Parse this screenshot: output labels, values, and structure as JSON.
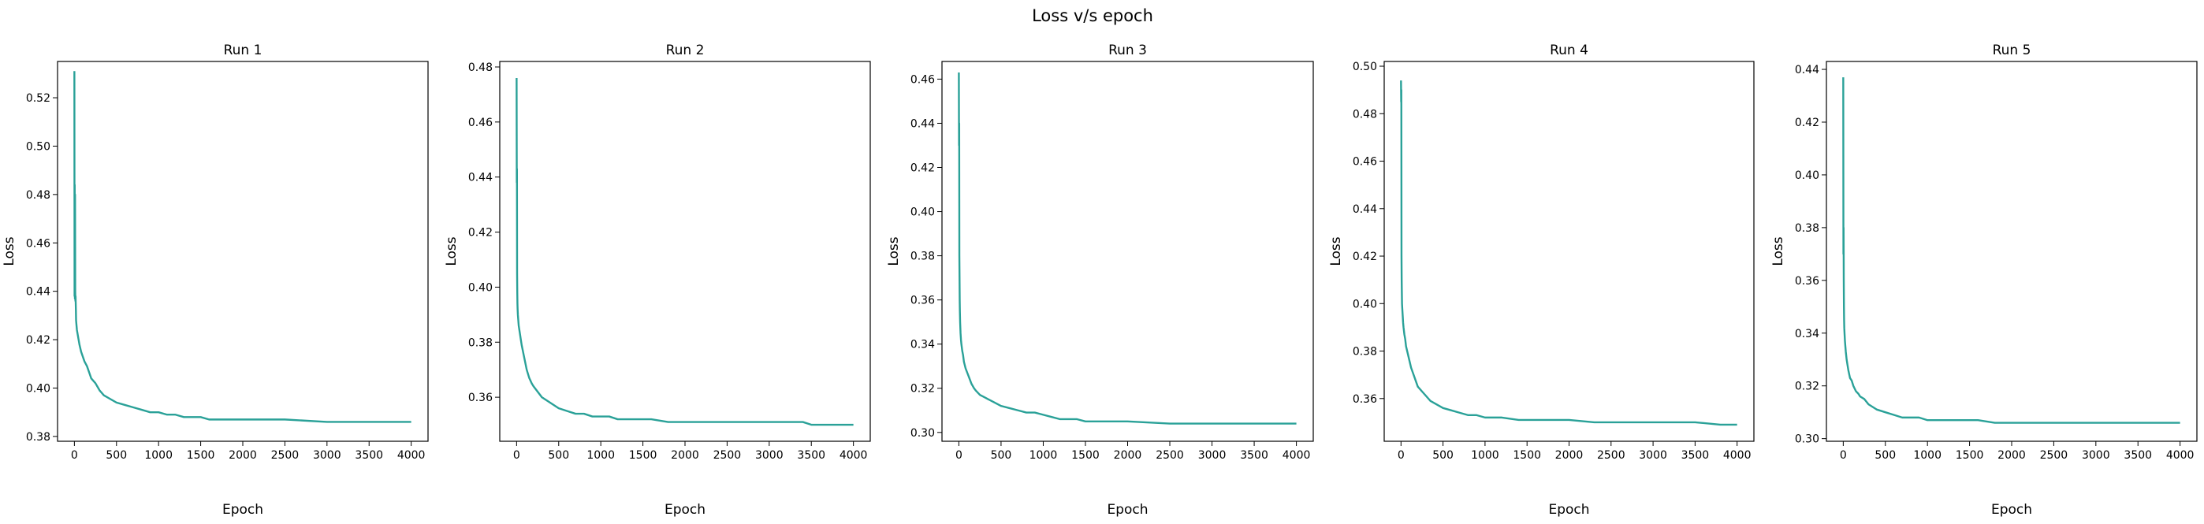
{
  "figure": {
    "suptitle": "Loss v/s epoch"
  },
  "colors": {
    "line": "#2aa198",
    "axes": "#000000",
    "background": "#ffffff"
  },
  "chart_data": [
    {
      "type": "line",
      "title": "Run 1",
      "xlabel": "Epoch",
      "ylabel": "Loss",
      "xlim": [
        -200,
        4200
      ],
      "ylim": [
        0.378,
        0.535
      ],
      "xticks": [
        0,
        500,
        1000,
        1500,
        2000,
        2500,
        3000,
        3500,
        4000
      ],
      "yticks": [
        0.38,
        0.4,
        0.42,
        0.44,
        0.46,
        0.48,
        0.5,
        0.52
      ],
      "ytick_labels": [
        "0.38",
        "0.40",
        "0.42",
        "0.44",
        "0.46",
        "0.48",
        "0.50",
        "0.52"
      ],
      "grid": false,
      "series": [
        {
          "x": [
            0,
            2,
            4,
            6,
            8,
            10,
            12,
            14,
            16,
            18,
            20,
            25,
            30,
            40,
            50,
            60,
            80,
            100,
            120,
            150,
            180,
            200,
            250,
            300,
            350,
            400,
            500,
            600,
            700,
            800,
            900,
            1000,
            1100,
            1200,
            1300,
            1400,
            1500,
            1600,
            1800,
            2000,
            2500,
            3000,
            3500,
            4000
          ],
          "y": [
            0.531,
            0.438,
            0.484,
            0.437,
            0.48,
            0.44,
            0.436,
            0.438,
            0.435,
            0.432,
            0.428,
            0.426,
            0.424,
            0.422,
            0.42,
            0.418,
            0.415,
            0.413,
            0.411,
            0.409,
            0.406,
            0.404,
            0.402,
            0.399,
            0.397,
            0.396,
            0.394,
            0.393,
            0.392,
            0.391,
            0.39,
            0.39,
            0.389,
            0.389,
            0.388,
            0.388,
            0.388,
            0.387,
            0.387,
            0.387,
            0.387,
            0.386,
            0.386,
            0.386
          ]
        }
      ]
    },
    {
      "type": "line",
      "title": "Run 2",
      "xlabel": "Epoch",
      "ylabel": "Loss",
      "xlim": [
        -200,
        4200
      ],
      "ylim": [
        0.344,
        0.482
      ],
      "xticks": [
        0,
        500,
        1000,
        1500,
        2000,
        2500,
        3000,
        3500,
        4000
      ],
      "yticks": [
        0.36,
        0.38,
        0.4,
        0.42,
        0.44,
        0.46,
        0.48
      ],
      "ytick_labels": [
        "0.36",
        "0.38",
        "0.40",
        "0.42",
        "0.44",
        "0.46",
        "0.48"
      ],
      "grid": false,
      "series": [
        {
          "x": [
            0,
            2,
            4,
            6,
            8,
            10,
            12,
            15,
            20,
            25,
            30,
            40,
            50,
            60,
            80,
            100,
            120,
            150,
            180,
            200,
            250,
            300,
            350,
            400,
            500,
            600,
            700,
            800,
            900,
            1000,
            1100,
            1200,
            1400,
            1600,
            1800,
            2000,
            2500,
            3000,
            3400,
            3500,
            4000
          ],
          "y": [
            0.476,
            0.438,
            0.443,
            0.405,
            0.398,
            0.394,
            0.392,
            0.39,
            0.388,
            0.386,
            0.385,
            0.383,
            0.381,
            0.379,
            0.376,
            0.373,
            0.37,
            0.367,
            0.365,
            0.364,
            0.362,
            0.36,
            0.359,
            0.358,
            0.356,
            0.355,
            0.354,
            0.354,
            0.353,
            0.353,
            0.353,
            0.352,
            0.352,
            0.352,
            0.351,
            0.351,
            0.351,
            0.351,
            0.351,
            0.35,
            0.35
          ]
        }
      ]
    },
    {
      "type": "line",
      "title": "Run 3",
      "xlabel": "Epoch",
      "ylabel": "Loss",
      "xlim": [
        -200,
        4200
      ],
      "ylim": [
        0.296,
        0.468
      ],
      "xticks": [
        0,
        500,
        1000,
        1500,
        2000,
        2500,
        3000,
        3500,
        4000
      ],
      "yticks": [
        0.3,
        0.32,
        0.34,
        0.36,
        0.38,
        0.4,
        0.42,
        0.44,
        0.46
      ],
      "ytick_labels": [
        "0.30",
        "0.32",
        "0.34",
        "0.36",
        "0.38",
        "0.40",
        "0.42",
        "0.44",
        "0.46"
      ],
      "grid": false,
      "series": [
        {
          "x": [
            0,
            2,
            4,
            6,
            8,
            10,
            12,
            15,
            20,
            25,
            30,
            40,
            50,
            60,
            80,
            100,
            120,
            150,
            180,
            200,
            250,
            300,
            350,
            400,
            500,
            600,
            700,
            800,
            900,
            1000,
            1100,
            1200,
            1400,
            1500,
            2000,
            2500,
            3000,
            3500,
            4000
          ],
          "y": [
            0.463,
            0.43,
            0.44,
            0.38,
            0.37,
            0.36,
            0.355,
            0.35,
            0.345,
            0.342,
            0.34,
            0.337,
            0.335,
            0.332,
            0.329,
            0.327,
            0.325,
            0.322,
            0.32,
            0.319,
            0.317,
            0.316,
            0.315,
            0.314,
            0.312,
            0.311,
            0.31,
            0.309,
            0.309,
            0.308,
            0.307,
            0.306,
            0.306,
            0.305,
            0.305,
            0.304,
            0.304,
            0.304,
            0.304
          ]
        }
      ]
    },
    {
      "type": "line",
      "title": "Run 4",
      "xlabel": "Epoch",
      "ylabel": "Loss",
      "xlim": [
        -200,
        4200
      ],
      "ylim": [
        0.342,
        0.502
      ],
      "xticks": [
        0,
        500,
        1000,
        1500,
        2000,
        2500,
        3000,
        3500,
        4000
      ],
      "yticks": [
        0.36,
        0.38,
        0.4,
        0.42,
        0.44,
        0.46,
        0.48,
        0.5
      ],
      "ytick_labels": [
        "0.36",
        "0.38",
        "0.40",
        "0.42",
        "0.44",
        "0.46",
        "0.48",
        "0.50"
      ],
      "grid": false,
      "series": [
        {
          "x": [
            0,
            2,
            4,
            6,
            8,
            10,
            12,
            15,
            20,
            25,
            30,
            40,
            50,
            60,
            80,
            100,
            120,
            150,
            180,
            200,
            250,
            300,
            350,
            400,
            500,
            600,
            700,
            800,
            900,
            1000,
            1100,
            1200,
            1400,
            1500,
            1800,
            2000,
            2300,
            2500,
            3000,
            3500,
            3800,
            4000
          ],
          "y": [
            0.494,
            0.485,
            0.49,
            0.42,
            0.41,
            0.405,
            0.4,
            0.398,
            0.395,
            0.392,
            0.39,
            0.387,
            0.385,
            0.382,
            0.379,
            0.376,
            0.373,
            0.37,
            0.367,
            0.365,
            0.363,
            0.361,
            0.359,
            0.358,
            0.356,
            0.355,
            0.354,
            0.353,
            0.353,
            0.352,
            0.352,
            0.352,
            0.351,
            0.351,
            0.351,
            0.351,
            0.35,
            0.35,
            0.35,
            0.35,
            0.349,
            0.349
          ]
        }
      ]
    },
    {
      "type": "line",
      "title": "Run 5",
      "xlabel": "Epoch",
      "ylabel": "Loss",
      "xlim": [
        -200,
        4200
      ],
      "ylim": [
        0.299,
        0.443
      ],
      "xticks": [
        0,
        500,
        1000,
        1500,
        2000,
        2500,
        3000,
        3500,
        4000
      ],
      "yticks": [
        0.3,
        0.32,
        0.34,
        0.36,
        0.38,
        0.4,
        0.42,
        0.44
      ],
      "ytick_labels": [
        "0.30",
        "0.32",
        "0.34",
        "0.36",
        "0.38",
        "0.40",
        "0.42",
        "0.44"
      ],
      "grid": false,
      "series": [
        {
          "x": [
            0,
            2,
            4,
            6,
            8,
            10,
            12,
            15,
            20,
            25,
            30,
            40,
            50,
            60,
            80,
            100,
            120,
            150,
            180,
            200,
            250,
            300,
            350,
            400,
            500,
            600,
            700,
            800,
            900,
            1000,
            1100,
            1200,
            1400,
            1600,
            1800,
            2000,
            2500,
            3000,
            3500,
            4000
          ],
          "y": [
            0.437,
            0.37,
            0.38,
            0.36,
            0.35,
            0.345,
            0.342,
            0.34,
            0.337,
            0.335,
            0.333,
            0.33,
            0.328,
            0.326,
            0.323,
            0.322,
            0.32,
            0.318,
            0.317,
            0.316,
            0.315,
            0.313,
            0.312,
            0.311,
            0.31,
            0.309,
            0.308,
            0.308,
            0.308,
            0.307,
            0.307,
            0.307,
            0.307,
            0.307,
            0.306,
            0.306,
            0.306,
            0.306,
            0.306,
            0.306
          ]
        }
      ]
    }
  ]
}
